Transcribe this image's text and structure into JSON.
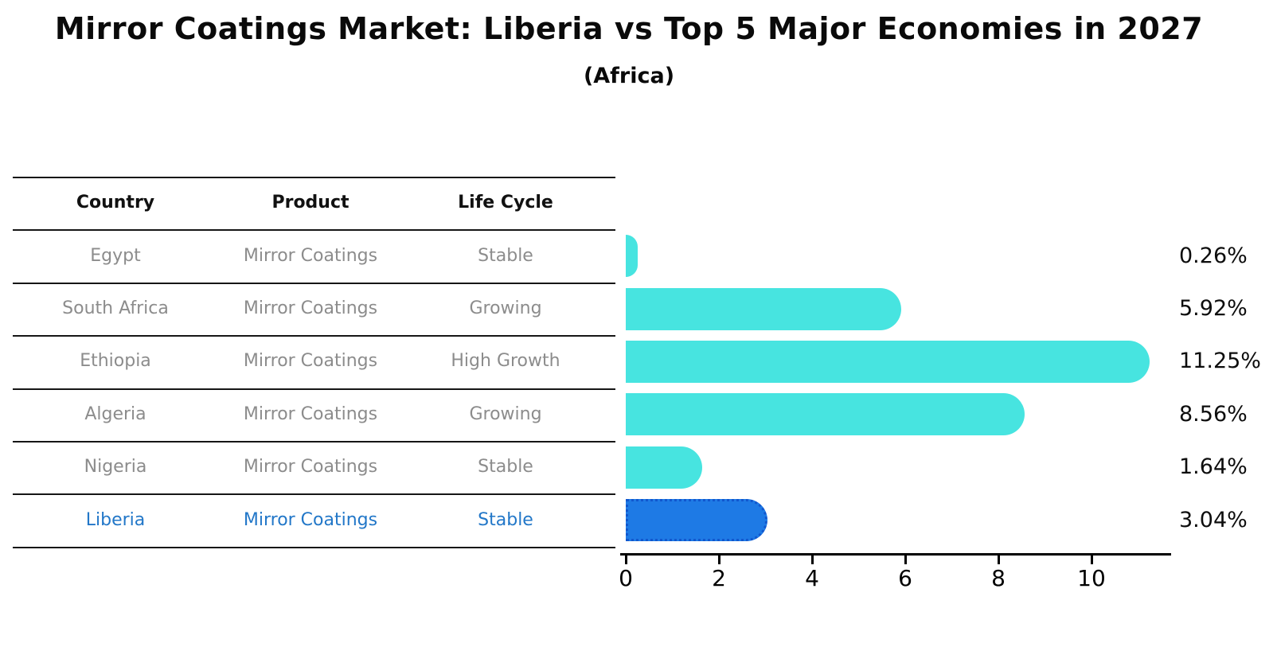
{
  "title": "Mirror Coatings Market: Liberia vs Top 5 Major Economies in 2027",
  "subtitle": "(Africa)",
  "table": {
    "headers": [
      "Country",
      "Product",
      "Life Cycle"
    ]
  },
  "rows": [
    {
      "country": "Egypt",
      "product": "Mirror Coatings",
      "life_cycle": "Stable",
      "value": 0.26,
      "value_label": "0.26%",
      "highlighted": false
    },
    {
      "country": "South Africa",
      "product": "Mirror Coatings",
      "life_cycle": "Growing",
      "value": 5.92,
      "value_label": "5.92%",
      "highlighted": false
    },
    {
      "country": "Ethiopia",
      "product": "Mirror Coatings",
      "life_cycle": "High Growth",
      "value": 11.25,
      "value_label": "11.25%",
      "highlighted": false
    },
    {
      "country": "Algeria",
      "product": "Mirror Coatings",
      "life_cycle": "Growing",
      "value": 8.56,
      "value_label": "8.56%",
      "highlighted": false
    },
    {
      "country": "Nigeria",
      "product": "Mirror Coatings",
      "life_cycle": "Stable",
      "value": 1.64,
      "value_label": "1.64%",
      "highlighted": false
    },
    {
      "country": "Liberia",
      "product": "Mirror Coatings",
      "life_cycle": "Stable",
      "value": 3.04,
      "value_label": "3.04%",
      "highlighted": true
    }
  ],
  "chart_data": {
    "type": "bar",
    "orientation": "horizontal",
    "title": "Mirror Coatings Market: Liberia vs Top 5 Major Economies in 2027",
    "subtitle": "(Africa)",
    "categories": [
      "Egypt",
      "South Africa",
      "Ethiopia",
      "Algeria",
      "Nigeria",
      "Liberia"
    ],
    "values": [
      0.26,
      5.92,
      11.25,
      8.56,
      1.64,
      3.04
    ],
    "value_labels": [
      "0.26%",
      "5.92%",
      "11.25%",
      "8.56%",
      "1.64%",
      "3.04%"
    ],
    "life_cycles": [
      "Stable",
      "Growing",
      "High Growth",
      "Growing",
      "Stable",
      "Stable"
    ],
    "highlight_category": "Liberia",
    "x_ticks": [
      "0",
      "2",
      "4",
      "6",
      "8",
      "10"
    ],
    "x_tick_values": [
      0,
      2,
      4,
      6,
      8,
      10
    ],
    "xlim": [
      0,
      11.7
    ],
    "xlabel": "",
    "ylabel": "",
    "grid": false,
    "legend": "none"
  },
  "colors": {
    "bar": "#47E4E0",
    "highlight_bar": "#1E7AE5",
    "highlight_border": "#1157CE",
    "highlight_text": "#2277C8",
    "row_text": "#8C8C8C",
    "header_text": "#111111",
    "axis": "#000000",
    "background": "#FFFFFF"
  }
}
